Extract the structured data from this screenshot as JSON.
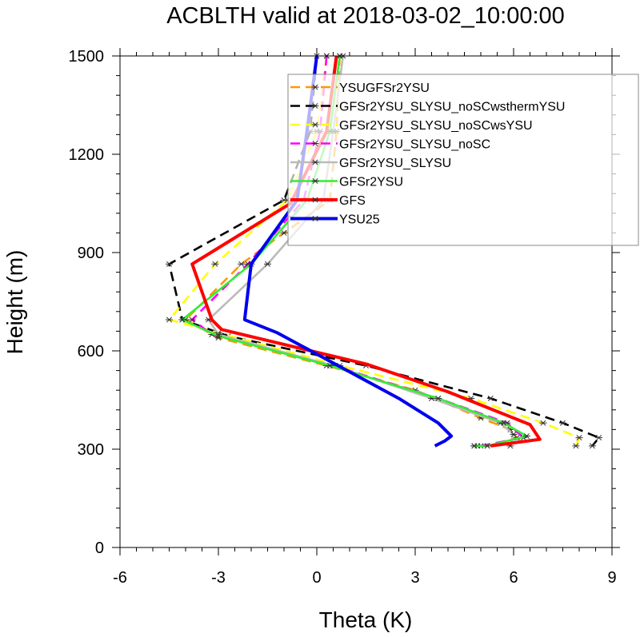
{
  "chart_data": {
    "type": "line",
    "title": "ACBLTH valid at 2018-03-02_10:00:00",
    "xlabel": "Theta (K)",
    "ylabel": "Height (m)",
    "xlim": [
      -6,
      9
    ],
    "ylim": [
      0,
      1500
    ],
    "xticks": [
      -6,
      -3,
      0,
      3,
      6,
      9
    ],
    "xtick_labels": [
      "-6",
      "-3",
      "0",
      "3",
      "6",
      "9"
    ],
    "yticks": [
      0,
      300,
      600,
      900,
      1200,
      1500
    ],
    "ytick_labels": [
      "0",
      "300",
      "600",
      "900",
      "1200",
      "1500"
    ],
    "grid": false,
    "legend_position": "top-right",
    "series": [
      {
        "name": "YSUGFSr2YSU",
        "color": "#ff9900",
        "dash": "dash",
        "markers": true,
        "points": [
          [
            0.7,
            1500
          ],
          [
            0.6,
            1270
          ],
          [
            0.4,
            1060
          ],
          [
            -1.0,
            960
          ],
          [
            -2.3,
            865
          ],
          [
            -4.0,
            695
          ],
          [
            -3.0,
            640
          ],
          [
            0.3,
            555
          ],
          [
            3.0,
            480
          ],
          [
            5.0,
            395
          ],
          [
            5.9,
            360
          ],
          [
            6.1,
            335
          ],
          [
            5.2,
            310
          ],
          [
            4.9,
            310
          ]
        ]
      },
      {
        "name": "GFSr2YSU_SLYSU_noSCwsthermYSU",
        "color": "#000000",
        "dash": "dash",
        "markers": true,
        "points": [
          [
            0,
            1500
          ],
          [
            -0.2,
            1270
          ],
          [
            -1.0,
            1060
          ],
          [
            -4.5,
            865
          ],
          [
            -4.1,
            695
          ],
          [
            -2.7,
            645
          ],
          [
            1.5,
            555
          ],
          [
            5.3,
            455
          ],
          [
            7.5,
            380
          ],
          [
            8.6,
            335
          ],
          [
            8.4,
            310
          ]
        ]
      },
      {
        "name": "GFSr2YSU_SLYSU_noSCwsYSU",
        "color": "#ffff00",
        "dash": "dash",
        "markers": true,
        "points": [
          [
            0.3,
            1500
          ],
          [
            0,
            1270
          ],
          [
            -0.9,
            1060
          ],
          [
            -3.1,
            865
          ],
          [
            -4.5,
            695
          ],
          [
            -3.0,
            655
          ],
          [
            0.7,
            555
          ],
          [
            4.7,
            455
          ],
          [
            6.9,
            380
          ],
          [
            8.0,
            335
          ],
          [
            7.9,
            310
          ]
        ]
      },
      {
        "name": "GFSr2YSU_SLYSU_noSC",
        "color": "#ff00ff",
        "dash": "dash",
        "markers": true,
        "points": [
          [
            0.3,
            1500
          ],
          [
            0.1,
            1270
          ],
          [
            -0.4,
            1060
          ],
          [
            -2.1,
            865
          ],
          [
            -3.8,
            695
          ],
          [
            -3.2,
            650
          ],
          [
            0.5,
            555
          ],
          [
            3.7,
            455
          ],
          [
            5.8,
            380
          ],
          [
            6.3,
            335
          ],
          [
            5.0,
            310
          ],
          [
            4.8,
            310
          ]
        ]
      },
      {
        "name": "GFSr2YSU_SLYSU",
        "color": "#bbbbbb",
        "dash": "solid",
        "markers": true,
        "points": [
          [
            0.8,
            1500
          ],
          [
            0.5,
            1270
          ],
          [
            0.2,
            1060
          ],
          [
            -1.5,
            865
          ],
          [
            -3.3,
            695
          ],
          [
            -3.0,
            650
          ],
          [
            0.5,
            555
          ],
          [
            3.5,
            455
          ],
          [
            5.6,
            380
          ],
          [
            6.0,
            345
          ],
          [
            5.9,
            310
          ]
        ]
      },
      {
        "name": "GFSr2YSU",
        "color": "#33ee33",
        "dash": "solid",
        "markers": true,
        "points": [
          [
            0.7,
            1500
          ],
          [
            0.4,
            1270
          ],
          [
            -0.3,
            1060
          ],
          [
            -2.0,
            865
          ],
          [
            -4.1,
            695
          ],
          [
            -3.0,
            645
          ],
          [
            0.4,
            555
          ],
          [
            3.7,
            455
          ],
          [
            5.7,
            380
          ],
          [
            6.4,
            340
          ],
          [
            5.2,
            310
          ],
          [
            4.8,
            310
          ]
        ]
      },
      {
        "name": "GFS",
        "color": "#ff0000",
        "dash": "solid",
        "markers": false,
        "points": [
          [
            0.6,
            1500
          ],
          [
            0.3,
            1270
          ],
          [
            -0.8,
            1050
          ],
          [
            -3.8,
            865
          ],
          [
            -3.2,
            695
          ],
          [
            -2.9,
            665
          ],
          [
            1.5,
            560
          ],
          [
            4.0,
            475
          ],
          [
            6.5,
            375
          ],
          [
            6.8,
            330
          ],
          [
            5.3,
            310
          ]
        ]
      },
      {
        "name": "YSU25",
        "color": "#0000ee",
        "dash": "solid",
        "markers": false,
        "points": [
          [
            0,
            1500
          ],
          [
            -0.3,
            1270
          ],
          [
            -0.6,
            1060
          ],
          [
            -2.0,
            865
          ],
          [
            -2.2,
            695
          ],
          [
            -1.2,
            655
          ],
          [
            2.5,
            455
          ],
          [
            3.7,
            380
          ],
          [
            4.1,
            340
          ],
          [
            3.9,
            325
          ],
          [
            3.6,
            310
          ]
        ]
      }
    ]
  }
}
